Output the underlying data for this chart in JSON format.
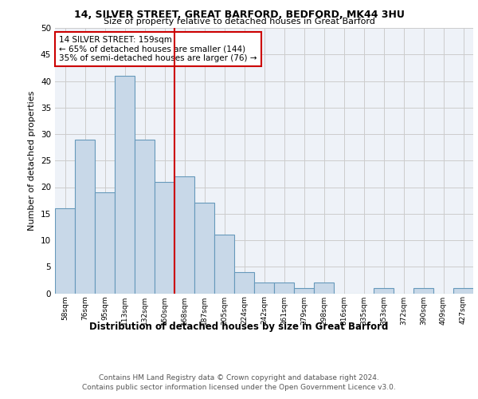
{
  "title1": "14, SILVER STREET, GREAT BARFORD, BEDFORD, MK44 3HU",
  "title2": "Size of property relative to detached houses in Great Barford",
  "xlabel": "Distribution of detached houses by size in Great Barford",
  "ylabel": "Number of detached properties",
  "categories": [
    "58sqm",
    "76sqm",
    "95sqm",
    "113sqm",
    "132sqm",
    "150sqm",
    "168sqm",
    "187sqm",
    "205sqm",
    "224sqm",
    "242sqm",
    "261sqm",
    "279sqm",
    "298sqm",
    "316sqm",
    "335sqm",
    "353sqm",
    "372sqm",
    "390sqm",
    "409sqm",
    "427sqm"
  ],
  "values": [
    16,
    29,
    19,
    41,
    29,
    21,
    22,
    17,
    11,
    4,
    2,
    2,
    1,
    2,
    0,
    0,
    1,
    0,
    1,
    0,
    1
  ],
  "bar_color": "#c8d8e8",
  "bar_edge_color": "#6699bb",
  "bar_linewidth": 0.8,
  "grid_color": "#cccccc",
  "bg_color": "#eef2f8",
  "red_line_x": 5.5,
  "red_line_color": "#cc0000",
  "annotation_text": "14 SILVER STREET: 159sqm\n← 65% of detached houses are smaller (144)\n35% of semi-detached houses are larger (76) →",
  "annotation_box_color": "#ffffff",
  "annotation_box_edge": "#cc0000",
  "footer1": "Contains HM Land Registry data © Crown copyright and database right 2024.",
  "footer2": "Contains public sector information licensed under the Open Government Licence v3.0.",
  "ylim": [
    0,
    50
  ],
  "yticks": [
    0,
    5,
    10,
    15,
    20,
    25,
    30,
    35,
    40,
    45,
    50
  ]
}
